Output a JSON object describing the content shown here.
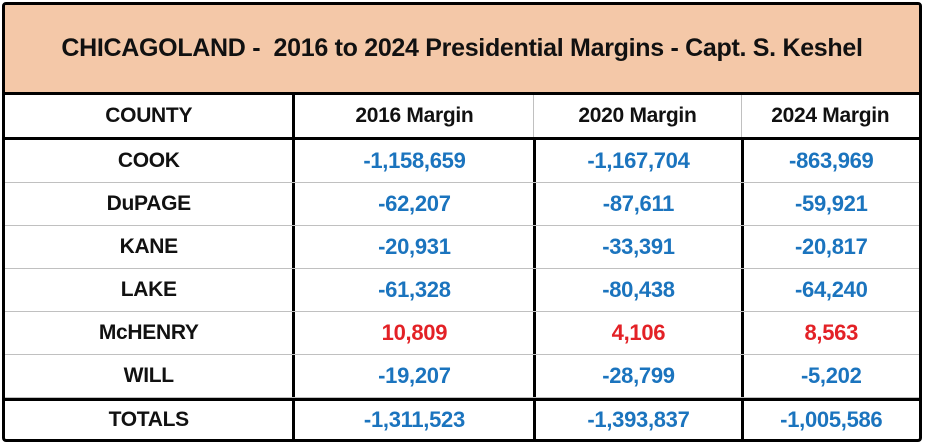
{
  "title": "CHICAGOLAND -  2016 to 2024 Presidential Margins - Capt. S. Keshel",
  "colors": {
    "title_bg": "#F4C8A8",
    "border": "#000000",
    "row_divider": "#C0C0C0",
    "negative_value": "#1B74BE",
    "positive_value": "#E32126"
  },
  "table": {
    "headers": [
      "COUNTY",
      "2016 Margin",
      "2020 Margin",
      "2024 Margin"
    ],
    "rows": [
      {
        "county": "COOK",
        "m2016": "-1,158,659",
        "m2020": "-1,167,704",
        "m2024": "-863,969"
      },
      {
        "county": "DuPAGE",
        "m2016": "-62,207",
        "m2020": "-87,611",
        "m2024": "-59,921"
      },
      {
        "county": "KANE",
        "m2016": "-20,931",
        "m2020": "-33,391",
        "m2024": "-20,817"
      },
      {
        "county": "LAKE",
        "m2016": "-61,328",
        "m2020": "-80,438",
        "m2024": "-64,240"
      },
      {
        "county": "McHENRY",
        "m2016": "10,809",
        "m2020": "4,106",
        "m2024": "8,563"
      },
      {
        "county": "WILL",
        "m2016": "-19,207",
        "m2020": "-28,799",
        "m2024": "-5,202"
      }
    ],
    "totals": {
      "label": "TOTALS",
      "m2016": "-1,311,523",
      "m2020": "-1,393,837",
      "m2024": "-1,005,586"
    }
  },
  "chart_data": {
    "type": "table",
    "title": "CHICAGOLAND - 2016 to 2024 Presidential Margins - Capt. S. Keshel",
    "categories": [
      "COOK",
      "DuPAGE",
      "KANE",
      "LAKE",
      "McHENRY",
      "WILL"
    ],
    "series": [
      {
        "name": "2016 Margin",
        "values": [
          -1158659,
          -62207,
          -20931,
          -61328,
          10809,
          -19207
        ],
        "total": -1311523
      },
      {
        "name": "2020 Margin",
        "values": [
          -1167704,
          -87611,
          -33391,
          -80438,
          4106,
          -28799
        ],
        "total": -1393837
      },
      {
        "name": "2024 Margin",
        "values": [
          -863969,
          -59921,
          -20817,
          -64240,
          8563,
          -5202
        ],
        "total": -1005586
      }
    ],
    "value_color_rule": "negative values blue (#1B74BE), positive values red (#E32126)"
  }
}
